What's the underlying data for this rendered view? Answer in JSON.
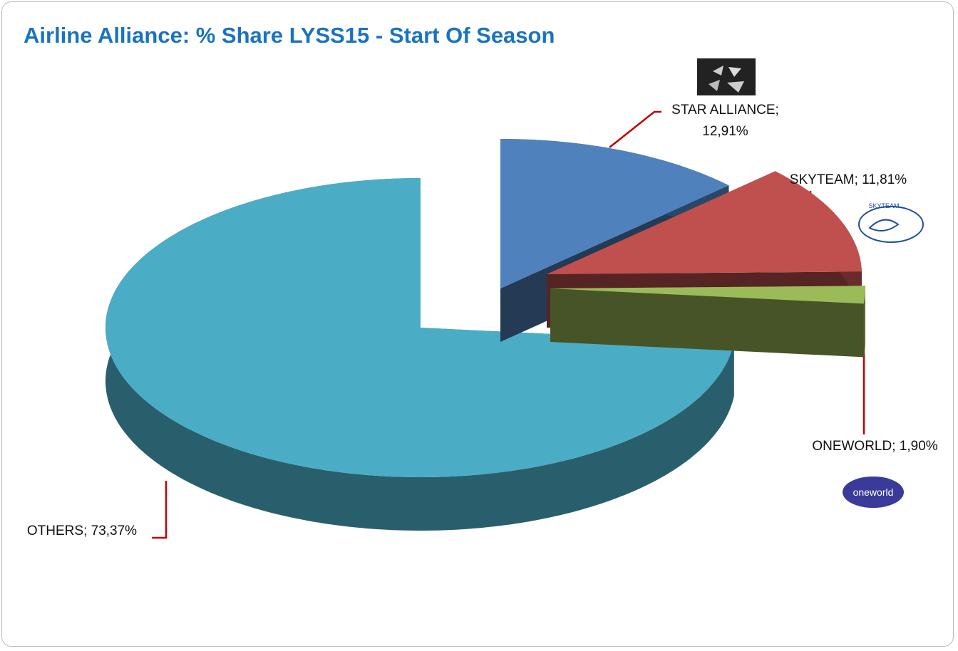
{
  "chart_data": {
    "type": "pie3d",
    "title": "Airline Alliance: % Share LYSS15 - Start Of Season",
    "values": [
      12.91,
      11.81,
      1.9,
      73.37
    ],
    "value_labels": [
      "STAR ALLIANCE; 12,91%",
      "SKYTEAM; 11,81%",
      "ONEWORLD; 1,90%",
      "OTHERS; 73,37%"
    ],
    "colors": [
      "#4f81bd",
      "#c0504d",
      "#9bbb59",
      "#4bacc6"
    ],
    "logo_texts": [
      "SKYTEAM",
      "oneworld"
    ]
  }
}
